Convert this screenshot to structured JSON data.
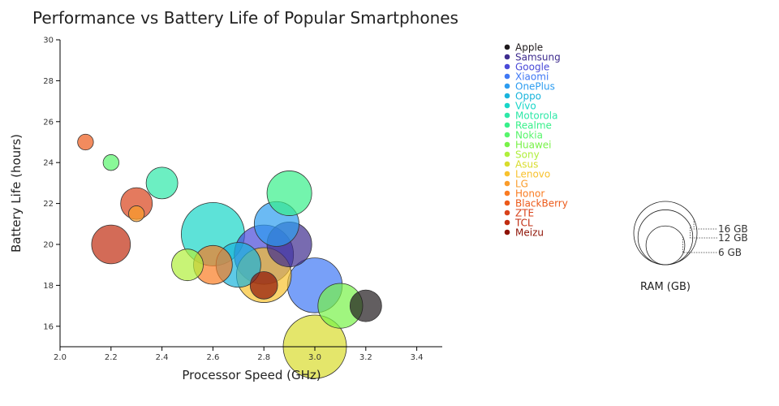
{
  "chart_data": {
    "type": "scatter",
    "title": "Performance vs Battery Life of Popular Smartphones",
    "xlabel": "Processor Speed (GHz)",
    "ylabel": "Battery Life (hours)",
    "xlim": [
      2.0,
      3.5
    ],
    "ylim": [
      15,
      30
    ],
    "x_ticks": [
      2.0,
      2.2,
      2.4,
      2.6,
      2.8,
      3.0,
      3.2,
      3.4
    ],
    "y_ticks": [
      16,
      18,
      20,
      22,
      24,
      26,
      28,
      30
    ],
    "grid": false,
    "legend_position": "right",
    "size_legend": {
      "title": "RAM (GB)",
      "values": [
        16,
        12,
        6
      ],
      "labels": [
        "16 GB",
        "12 GB",
        "6 GB"
      ]
    },
    "series": [
      {
        "name": "Apple",
        "color": "#1f1a1c",
        "x": 3.2,
        "y": 17,
        "ram": 4
      },
      {
        "name": "Samsung",
        "color": "#3e2c8e",
        "x": 2.9,
        "y": 20,
        "ram": 8
      },
      {
        "name": "Google",
        "color": "#4a4ad8",
        "x": 2.8,
        "y": 19.5,
        "ram": 14
      },
      {
        "name": "Xiaomi",
        "color": "#3f78f5",
        "x": 3.0,
        "y": 18,
        "ram": 12
      },
      {
        "name": "OnePlus",
        "color": "#2c9cf0",
        "x": 2.85,
        "y": 21,
        "ram": 8
      },
      {
        "name": "Oppo",
        "color": "#19b4dc",
        "x": 2.7,
        "y": 19,
        "ram": 8
      },
      {
        "name": "Vivo",
        "color": "#18d6c8",
        "x": 2.6,
        "y": 20.5,
        "ram": 16
      },
      {
        "name": "Motorola",
        "color": "#2ee8a8",
        "x": 2.4,
        "y": 23,
        "ram": 4
      },
      {
        "name": "Realme",
        "color": "#38f08a",
        "x": 2.9,
        "y": 22.5,
        "ram": 8
      },
      {
        "name": "Nokia",
        "color": "#58f56c",
        "x": 2.2,
        "y": 24,
        "ram": 1
      },
      {
        "name": "Huawei",
        "color": "#78f248",
        "x": 3.1,
        "y": 17,
        "ram": 8
      },
      {
        "name": "Sony",
        "color": "#b0ef3c",
        "x": 2.5,
        "y": 19,
        "ram": 4
      },
      {
        "name": "Asus",
        "color": "#d8dc2c",
        "x": 3.0,
        "y": 15,
        "ram": 16
      },
      {
        "name": "Lenovo",
        "color": "#f8c22e",
        "x": 2.8,
        "y": 18.5,
        "ram": 12
      },
      {
        "name": "LG",
        "color": "#fa9c2a",
        "x": 2.3,
        "y": 21.5,
        "ram": 1
      },
      {
        "name": "Honor",
        "color": "#fa7c22",
        "x": 2.6,
        "y": 19,
        "ram": 6
      },
      {
        "name": "BlackBerry",
        "color": "#ec5a1a",
        "x": 2.1,
        "y": 25,
        "ram": 1
      },
      {
        "name": "ZTE",
        "color": "#d8421a",
        "x": 2.3,
        "y": 22,
        "ram": 4
      },
      {
        "name": "TCL",
        "color": "#c02c10",
        "x": 2.2,
        "y": 20,
        "ram": 6
      },
      {
        "name": "Meizu",
        "color": "#8e1205",
        "x": 2.8,
        "y": 18,
        "ram": 3
      }
    ]
  }
}
